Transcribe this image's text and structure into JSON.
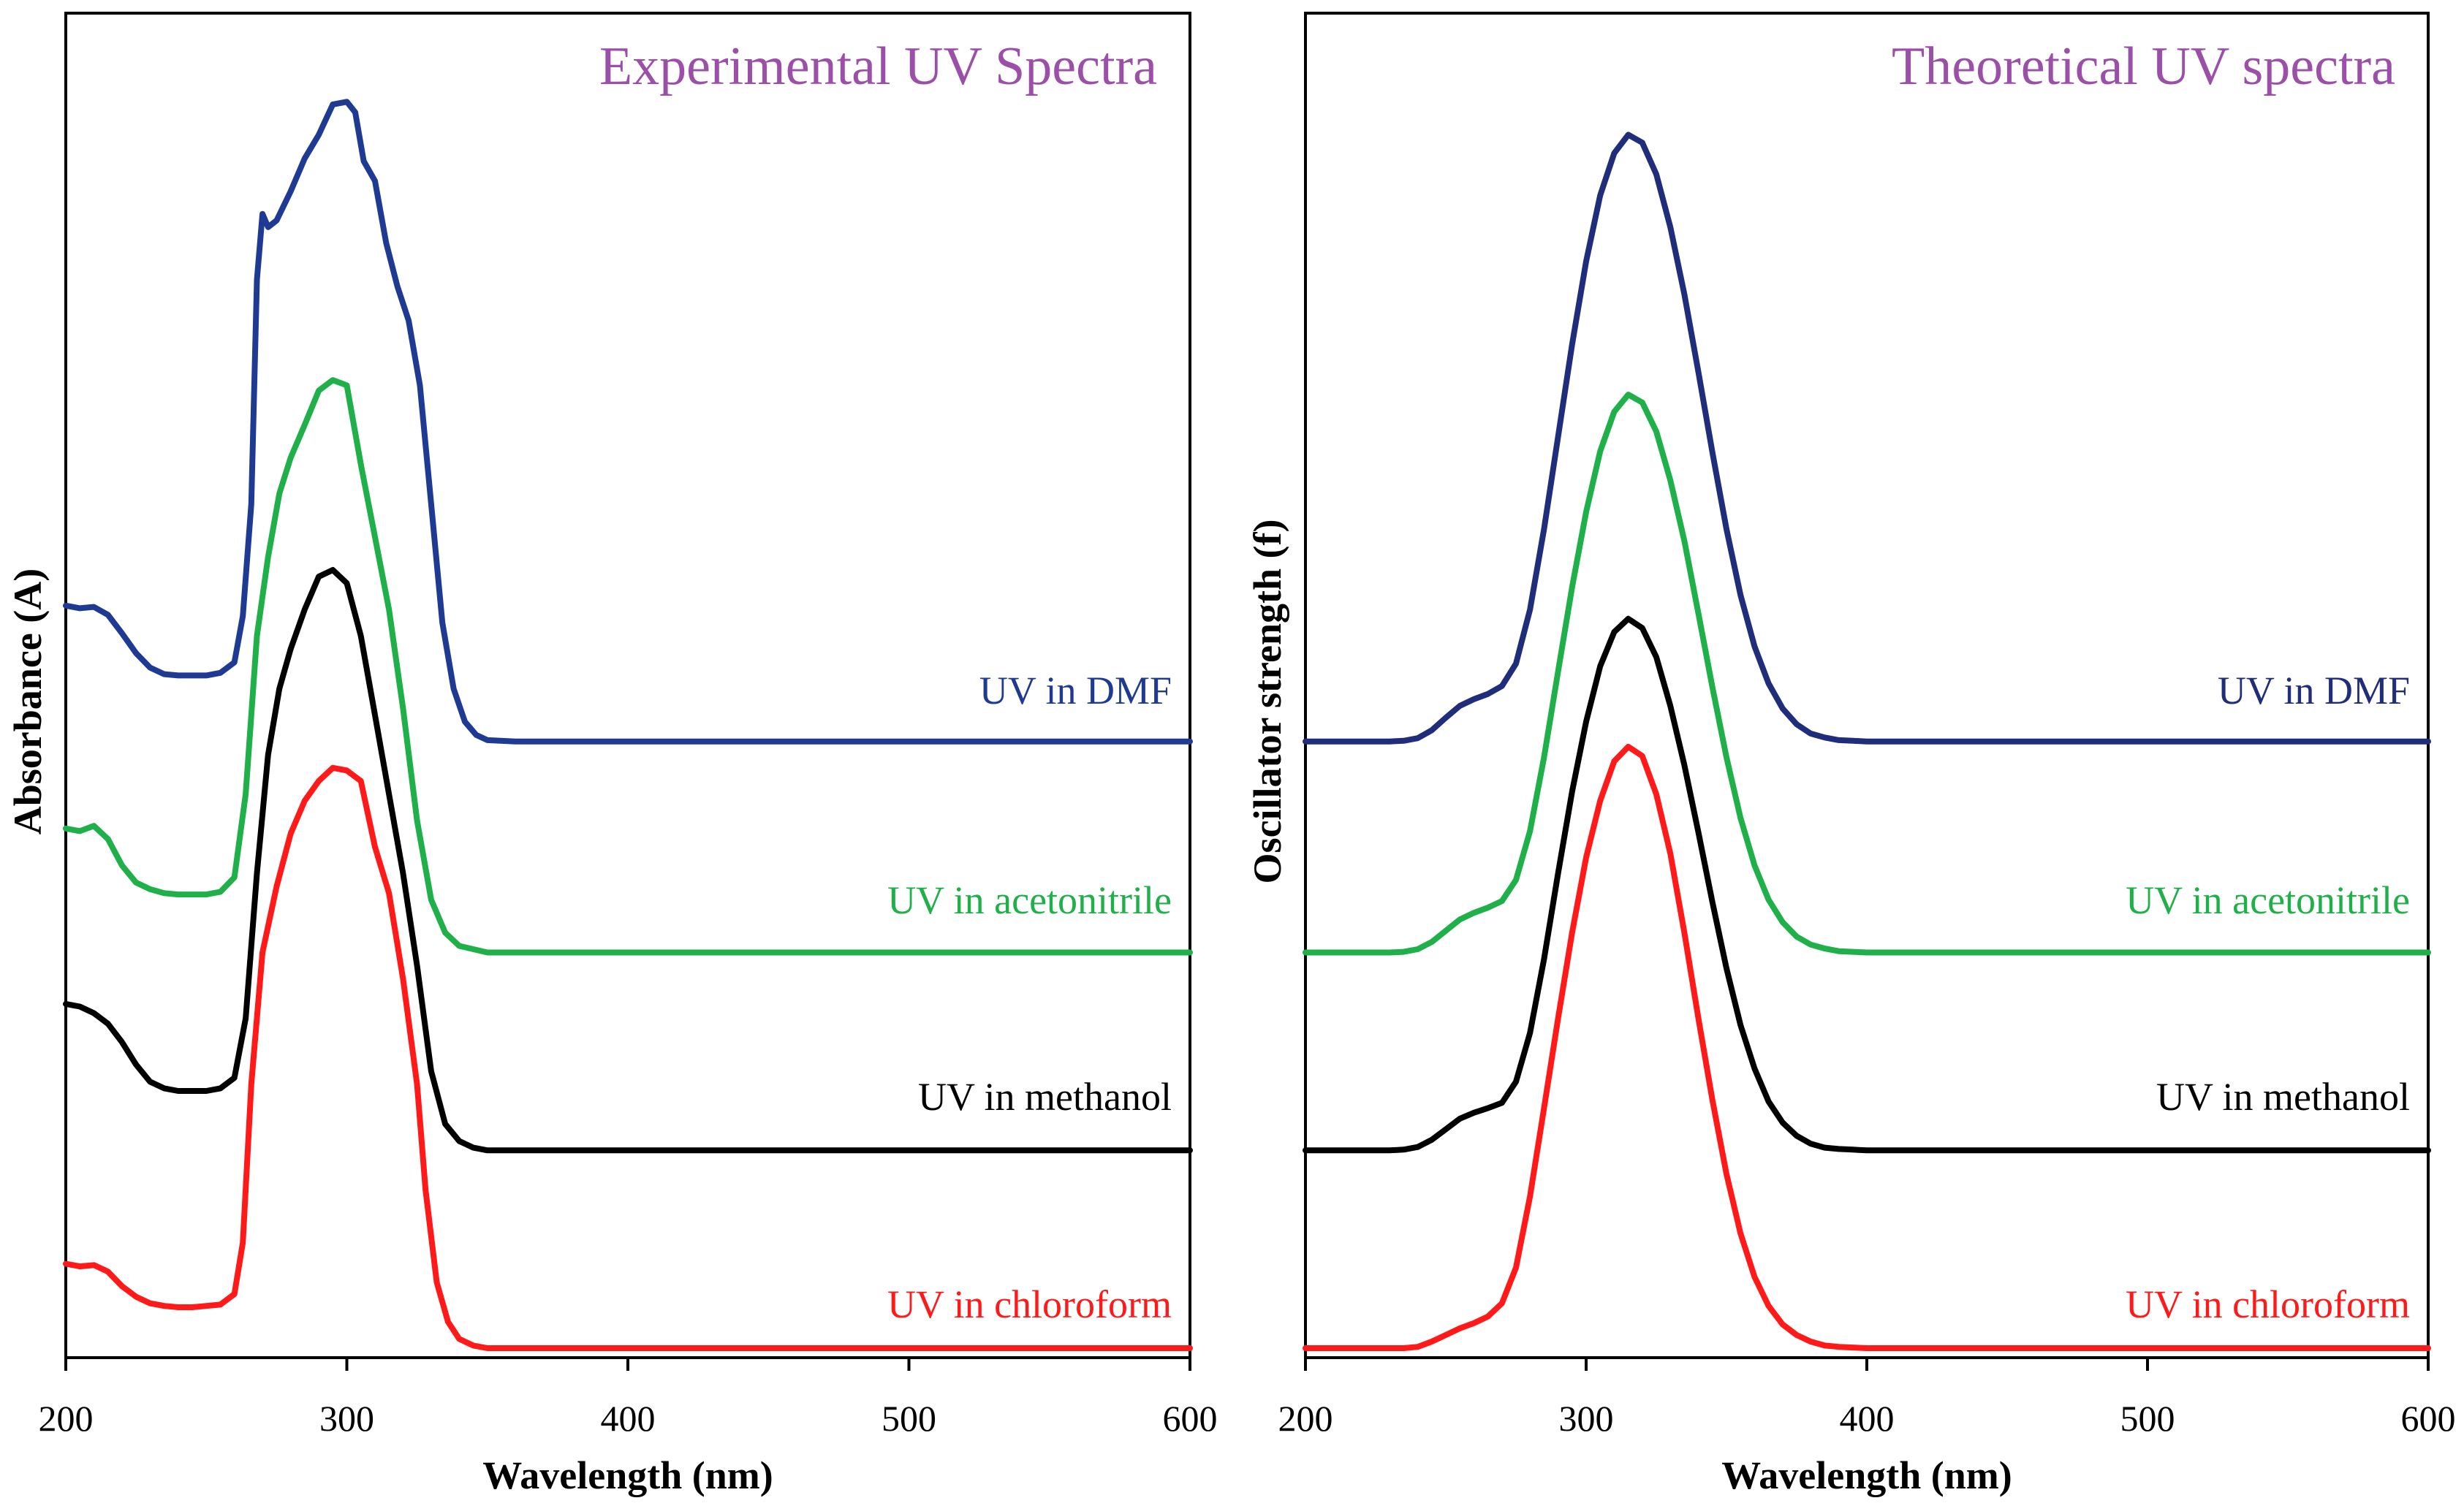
{
  "chart_data": [
    {
      "type": "line",
      "title": "Experimental UV Spectra",
      "title_color": "#9b4fa8",
      "xlabel": "Wavelength (nm)",
      "ylabel": "Absorbance (A)",
      "xlim": [
        200,
        600
      ],
      "ylim": [
        0,
        100
      ],
      "xticks": [
        "200",
        "300",
        "400",
        "500",
        "600"
      ],
      "series": [
        {
          "name": "UV in DMF",
          "color": "#1f3a93",
          "offset": 46,
          "x": [
            200,
            205,
            210,
            215,
            220,
            225,
            230,
            235,
            240,
            245,
            250,
            255,
            260,
            263,
            266,
            268,
            270,
            272,
            275,
            280,
            285,
            290,
            295,
            300,
            303,
            306,
            310,
            314,
            318,
            322,
            326,
            330,
            334,
            338,
            342,
            346,
            350,
            360,
            380,
            400,
            450,
            500,
            550,
            600
          ],
          "y": [
            10.3,
            10.1,
            10.2,
            9.6,
            8.2,
            6.7,
            5.6,
            5.1,
            5.0,
            5.0,
            5.0,
            5.2,
            6.0,
            9.5,
            18,
            35,
            40,
            39,
            39.5,
            41.7,
            44.2,
            46,
            48.3,
            48.5,
            47.7,
            44,
            42.5,
            37.8,
            34.5,
            31.9,
            27,
            18,
            9,
            4,
            1.5,
            0.5,
            0.1,
            0,
            0,
            0,
            0,
            0,
            0,
            0
          ]
        },
        {
          "name": "UV in acetonitrile",
          "color": "#1fb04a",
          "offset": 30,
          "x": [
            200,
            205,
            210,
            215,
            220,
            225,
            230,
            235,
            240,
            245,
            250,
            255,
            260,
            264,
            268,
            272,
            276,
            280,
            285,
            290,
            295,
            300,
            305,
            310,
            315,
            320,
            325,
            330,
            335,
            340,
            350,
            400,
            450,
            500,
            550,
            600
          ],
          "y": [
            9.4,
            9.2,
            9.6,
            8.6,
            6.6,
            5.3,
            4.8,
            4.5,
            4.4,
            4.4,
            4.4,
            4.6,
            5.7,
            12,
            24,
            30,
            34.8,
            37.5,
            40,
            42.6,
            43.4,
            43,
            37,
            31.5,
            26,
            18.5,
            10,
            4,
            1.5,
            0.5,
            0,
            0,
            0,
            0,
            0,
            0
          ]
        },
        {
          "name": "UV in methanol",
          "color": "#000000",
          "offset": 15,
          "x": [
            200,
            205,
            210,
            215,
            220,
            225,
            230,
            235,
            240,
            245,
            250,
            255,
            260,
            264,
            268,
            272,
            276,
            280,
            285,
            290,
            295,
            300,
            305,
            310,
            315,
            320,
            325,
            330,
            335,
            340,
            345,
            350,
            400,
            450,
            500,
            550,
            600
          ],
          "y": [
            11.1,
            10.9,
            10.4,
            9.6,
            8.2,
            6.5,
            5.2,
            4.7,
            4.5,
            4.5,
            4.5,
            4.7,
            5.5,
            10,
            21,
            30,
            35,
            38,
            41,
            43.5,
            44,
            43,
            39,
            33,
            27,
            21,
            14,
            6,
            2,
            0.7,
            0.2,
            0,
            0,
            0,
            0,
            0,
            0
          ]
        },
        {
          "name": "UV in chloroform",
          "color": "#ff1a1a",
          "offset": 0,
          "x": [
            200,
            205,
            210,
            215,
            220,
            225,
            230,
            235,
            240,
            245,
            250,
            255,
            260,
            263,
            266,
            270,
            275,
            280,
            285,
            290,
            295,
            300,
            305,
            310,
            315,
            320,
            325,
            328,
            332,
            336,
            340,
            345,
            350,
            360,
            400,
            450,
            500,
            550,
            600
          ],
          "y": [
            6.4,
            6.2,
            6.3,
            5.8,
            4.7,
            3.9,
            3.4,
            3.2,
            3.1,
            3.1,
            3.2,
            3.3,
            4.1,
            8,
            20,
            30,
            35,
            39,
            41.5,
            43,
            44,
            43.8,
            43,
            38,
            34.5,
            28,
            20,
            12,
            5,
            2,
            0.7,
            0.2,
            0,
            0,
            0,
            0,
            0,
            0,
            0
          ]
        }
      ]
    },
    {
      "type": "line",
      "title": "Theoretical UV spectra",
      "title_color": "#9b4fa8",
      "xlabel": "Wavelength (nm)",
      "ylabel": "Oscillator strength (f)",
      "xlim": [
        200,
        600
      ],
      "ylim": [
        0,
        100
      ],
      "xticks": [
        "200",
        "300",
        "400",
        "500",
        "600"
      ],
      "series": [
        {
          "name": "UV in DMF",
          "color": "#1f2d7a",
          "offset": 46,
          "x": [
            200,
            230,
            235,
            240,
            245,
            250,
            255,
            260,
            265,
            270,
            275,
            280,
            285,
            290,
            295,
            300,
            305,
            310,
            315,
            320,
            325,
            330,
            335,
            340,
            345,
            350,
            355,
            360,
            365,
            370,
            375,
            380,
            385,
            390,
            395,
            400,
            450,
            500,
            550,
            600
          ],
          "y": [
            0,
            0,
            0.05,
            0.25,
            0.85,
            1.8,
            2.7,
            3.2,
            3.6,
            4.2,
            5.9,
            10.0,
            16.1,
            23.1,
            30.1,
            36.4,
            41.4,
            44.6,
            46.0,
            45.4,
            43.0,
            39.0,
            33.9,
            28.0,
            21.9,
            16.1,
            11.1,
            7.2,
            4.4,
            2.5,
            1.3,
            0.6,
            0.3,
            0.1,
            0.05,
            0,
            0,
            0,
            0,
            0
          ]
        },
        {
          "name": "UV in acetonitrile",
          "color": "#1fb04a",
          "offset": 30,
          "x": [
            200,
            230,
            235,
            240,
            245,
            250,
            255,
            260,
            265,
            270,
            275,
            280,
            285,
            290,
            295,
            300,
            305,
            310,
            315,
            320,
            325,
            330,
            335,
            340,
            345,
            350,
            355,
            360,
            365,
            370,
            375,
            380,
            385,
            390,
            395,
            400,
            450,
            500,
            550,
            600
          ],
          "y": [
            0,
            0,
            0.05,
            0.25,
            0.8,
            1.65,
            2.5,
            3.0,
            3.4,
            3.9,
            5.5,
            9.2,
            14.8,
            21.3,
            27.7,
            33.4,
            38.0,
            41.0,
            42.3,
            41.7,
            39.5,
            35.8,
            31.2,
            25.7,
            20.1,
            14.8,
            10.2,
            6.6,
            4.0,
            2.3,
            1.2,
            0.6,
            0.3,
            0.1,
            0.05,
            0,
            0,
            0,
            0,
            0
          ]
        },
        {
          "name": "UV in methanol",
          "color": "#000000",
          "offset": 15,
          "x": [
            200,
            230,
            235,
            240,
            245,
            250,
            255,
            260,
            265,
            270,
            275,
            280,
            285,
            290,
            295,
            300,
            305,
            310,
            315,
            320,
            325,
            330,
            335,
            340,
            345,
            350,
            355,
            360,
            365,
            370,
            375,
            380,
            385,
            390,
            395,
            400,
            450,
            500,
            550,
            600
          ],
          "y": [
            0,
            0,
            0.05,
            0.25,
            0.8,
            1.6,
            2.4,
            2.85,
            3.2,
            3.6,
            5.2,
            8.9,
            14.5,
            21.0,
            27.2,
            32.5,
            36.7,
            39.3,
            40.3,
            39.6,
            37.4,
            33.7,
            29.2,
            24.1,
            18.8,
            13.8,
            9.5,
            6.2,
            3.7,
            2.1,
            1.1,
            0.5,
            0.2,
            0.1,
            0.05,
            0,
            0,
            0,
            0,
            0
          ]
        },
        {
          "name": "UV in chloroform",
          "color": "#ff1a1a",
          "offset": 0,
          "x": [
            200,
            235,
            240,
            245,
            250,
            255,
            260,
            265,
            270,
            275,
            280,
            285,
            290,
            295,
            300,
            305,
            310,
            315,
            320,
            325,
            330,
            335,
            340,
            345,
            350,
            355,
            360,
            365,
            370,
            375,
            380,
            385,
            390,
            395,
            400,
            450,
            500,
            550,
            600
          ],
          "y": [
            0,
            0,
            0.1,
            0.5,
            1.0,
            1.5,
            1.9,
            2.4,
            3.4,
            6.1,
            11.5,
            18.2,
            25.0,
            31.5,
            37.2,
            41.5,
            44.5,
            45.6,
            44.9,
            42.0,
            37.5,
            31.5,
            25.0,
            18.8,
            13.2,
            8.7,
            5.4,
            3.2,
            1.8,
            1.0,
            0.5,
            0.2,
            0.1,
            0.05,
            0,
            0,
            0,
            0,
            0
          ]
        }
      ]
    }
  ]
}
